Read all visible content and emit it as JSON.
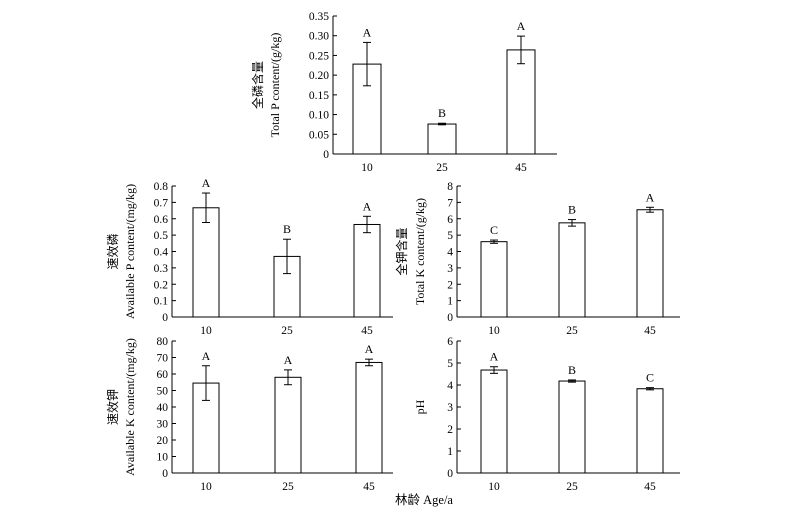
{
  "x_axis_title": "林龄 Age/a",
  "chart_data": [
    {
      "id": "total-p",
      "type": "bar",
      "ylabel_zh": "全磷含量",
      "ylabel_en": "Total P content/(g/kg)",
      "categories": [
        "10",
        "25",
        "45"
      ],
      "values": [
        0.228,
        0.076,
        0.264
      ],
      "errors": [
        0.055,
        0.002,
        0.035
      ],
      "significance": [
        "A",
        "B",
        "A"
      ],
      "ylim": [
        0,
        0.35
      ],
      "yticks": [
        "0",
        "0.05",
        "0.10",
        "0.15",
        "0.20",
        "0.25",
        "0.30",
        "0.35"
      ],
      "grid": false
    },
    {
      "id": "available-p",
      "type": "bar",
      "ylabel_zh": "速效磷",
      "ylabel_en": "Available P content/(mg/kg)",
      "categories": [
        "10",
        "25",
        "45"
      ],
      "values": [
        0.667,
        0.37,
        0.565
      ],
      "errors": [
        0.09,
        0.105,
        0.05
      ],
      "significance": [
        "A",
        "B",
        "A"
      ],
      "ylim": [
        0,
        0.8
      ],
      "yticks": [
        "0",
        "0.1",
        "0.2",
        "0.3",
        "0.4",
        "0.5",
        "0.6",
        "0.7",
        "0.8"
      ],
      "grid": false
    },
    {
      "id": "total-k",
      "type": "bar",
      "ylabel_zh": "全钾含量",
      "ylabel_en": "Total K content/(g/kg)",
      "categories": [
        "10",
        "25",
        "45"
      ],
      "values": [
        4.6,
        5.75,
        6.55
      ],
      "errors": [
        0.1,
        0.2,
        0.15
      ],
      "significance": [
        "C",
        "B",
        "A"
      ],
      "ylim": [
        0,
        8
      ],
      "yticks": [
        "0",
        "1",
        "2",
        "3",
        "4",
        "5",
        "6",
        "7",
        "8"
      ],
      "grid": false
    },
    {
      "id": "available-k",
      "type": "bar",
      "ylabel_zh": "速效钾",
      "ylabel_en": "Available K content/(mg/kg)",
      "categories": [
        "10",
        "25",
        "45"
      ],
      "values": [
        54.5,
        58.0,
        67.0
      ],
      "errors": [
        10.5,
        4.5,
        2.0
      ],
      "significance": [
        "A",
        "A",
        "A"
      ],
      "ylim": [
        0,
        80
      ],
      "yticks": [
        "0",
        "10",
        "20",
        "30",
        "40",
        "50",
        "60",
        "70",
        "80"
      ],
      "grid": false
    },
    {
      "id": "ph",
      "type": "bar",
      "ylabel_zh": "",
      "ylabel_en": "pH",
      "categories": [
        "10",
        "25",
        "45"
      ],
      "values": [
        4.68,
        4.18,
        3.83
      ],
      "errors": [
        0.15,
        0.05,
        0.05
      ],
      "significance": [
        "A",
        "B",
        "C"
      ],
      "ylim": [
        0,
        6
      ],
      "yticks": [
        "0",
        "1",
        "2",
        "3",
        "4",
        "5",
        "6"
      ],
      "grid": false
    }
  ]
}
